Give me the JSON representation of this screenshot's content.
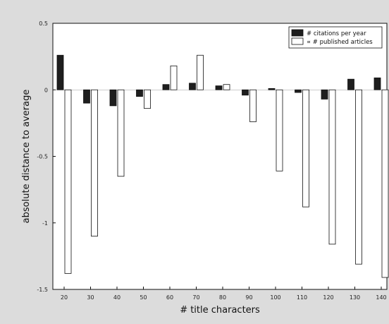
{
  "chart_data": {
    "type": "bar",
    "title": "",
    "xlabel": "# title characters",
    "ylabel": "absolute distance to average",
    "ylim": [
      -1.5,
      0.5
    ],
    "yticks": [
      0.5,
      0,
      -0.5,
      -1,
      -1.5
    ],
    "ytick_labels": [
      "0.5",
      "0",
      "-0.5",
      "-1",
      "-1.5"
    ],
    "categories": [
      "20",
      "30",
      "40",
      "50",
      "60",
      "70",
      "80",
      "90",
      "100",
      "110",
      "120",
      "130",
      "140"
    ],
    "series": [
      {
        "name": "# citations per year",
        "color": "#1e1e1e",
        "values": [
          0.26,
          -0.1,
          -0.12,
          -0.05,
          0.04,
          0.05,
          0.03,
          -0.04,
          0.01,
          -0.02,
          -0.07,
          0.08,
          0.09
        ]
      },
      {
        "name": "∝ # published articles",
        "color": "#ffffff",
        "values": [
          -1.38,
          -1.1,
          -0.65,
          -0.14,
          0.18,
          0.26,
          0.04,
          -0.24,
          -0.61,
          -0.88,
          -1.16,
          -1.31,
          -1.41
        ]
      }
    ],
    "legend_position": "top-right",
    "grid": false,
    "background_color": "#dcdcdc",
    "plot_color": "#ffffff"
  }
}
